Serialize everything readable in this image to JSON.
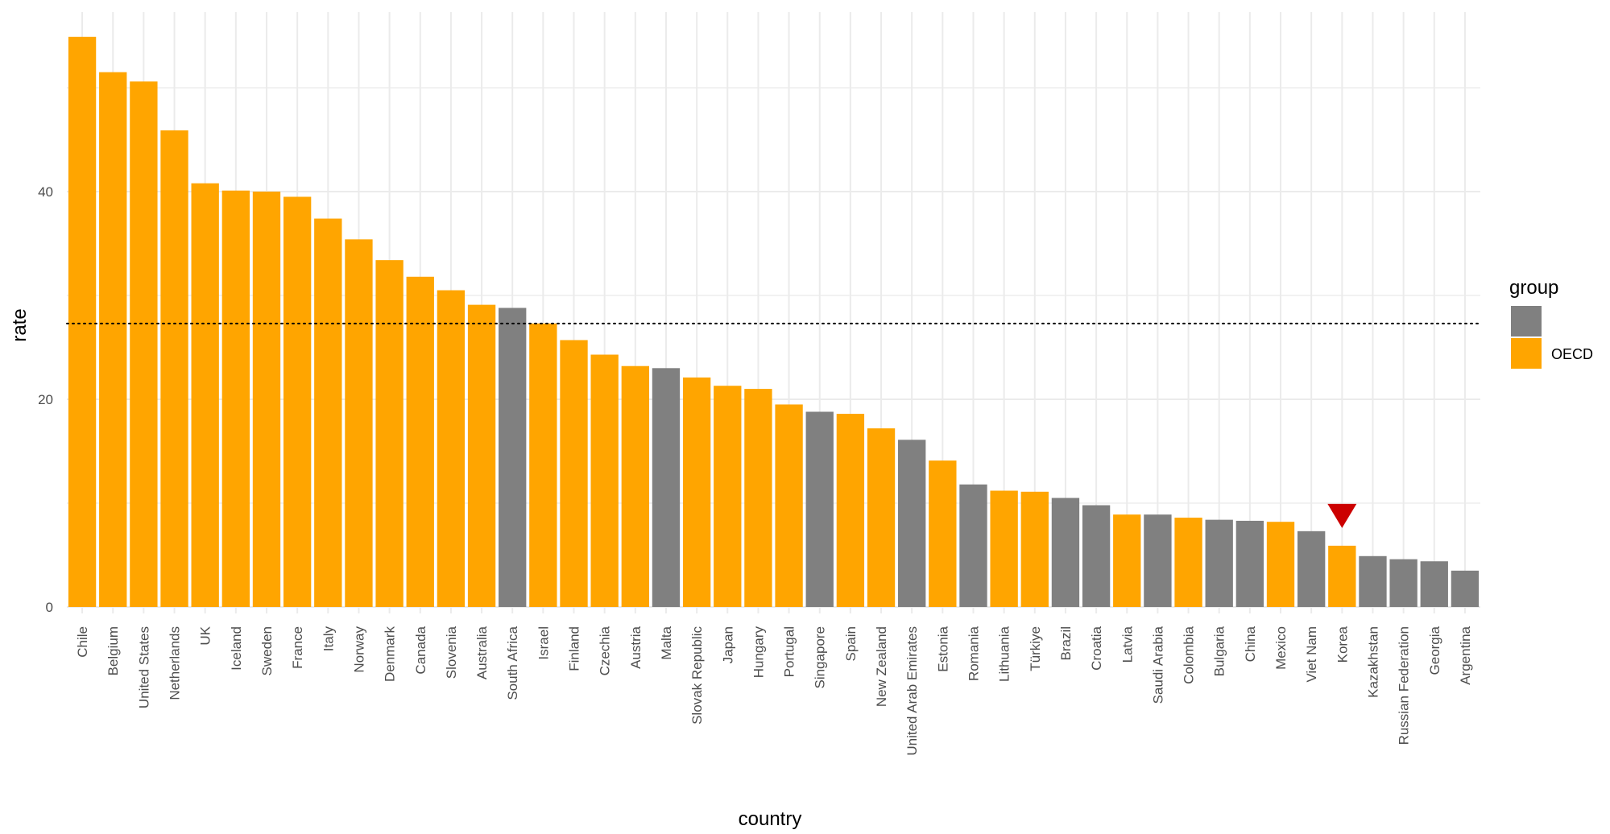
{
  "chart_data": {
    "type": "bar",
    "xlabel": "country",
    "ylabel": "rate",
    "yticks": [
      0,
      20,
      40
    ],
    "ylim": [
      0,
      56.5
    ],
    "reference_line": 27.3,
    "grid": true,
    "legend": {
      "title": "group",
      "placement": "right",
      "entries": [
        {
          "label": "",
          "color": "#808080"
        },
        {
          "label": "OECD",
          "color": "#FFA500"
        }
      ]
    },
    "highlight": {
      "category": "Korea",
      "marker": "down-triangle",
      "color": "#CC0000"
    },
    "colors": {
      "OECD": "#FFA500",
      "other": "#808080"
    },
    "categories": [
      "Chile",
      "Belgium",
      "United States",
      "Netherlands",
      "UK",
      "Iceland",
      "Sweden",
      "France",
      "Italy",
      "Norway",
      "Denmark",
      "Canada",
      "Slovenia",
      "Australia",
      "South Africa",
      "Israel",
      "Finland",
      "Czechia",
      "Austria",
      "Malta",
      "Slovak Republic",
      "Japan",
      "Hungary",
      "Portugal",
      "Singapore",
      "Spain",
      "New Zealand",
      "United Arab Emirates",
      "Estonia",
      "Romania",
      "Lithuania",
      "Türkiye",
      "Brazil",
      "Croatia",
      "Latvia",
      "Saudi Arabia",
      "Colombia",
      "Bulgaria",
      "China",
      "Mexico",
      "Viet Nam",
      "Korea",
      "Kazakhstan",
      "Russian Federation",
      "Georgia",
      "Argentina"
    ],
    "values": [
      54.9,
      51.5,
      50.6,
      45.9,
      40.8,
      40.1,
      40.0,
      39.5,
      37.4,
      35.4,
      33.4,
      31.8,
      30.5,
      29.1,
      28.8,
      27.3,
      25.7,
      24.3,
      23.2,
      23.0,
      22.1,
      21.3,
      21.0,
      19.5,
      18.8,
      18.6,
      17.2,
      16.1,
      14.1,
      11.8,
      11.2,
      11.1,
      10.5,
      9.8,
      8.9,
      8.9,
      8.6,
      8.4,
      8.3,
      8.2,
      7.3,
      5.9,
      4.9,
      4.6,
      4.4,
      3.5
    ],
    "groups": [
      "OECD",
      "OECD",
      "OECD",
      "OECD",
      "OECD",
      "OECD",
      "OECD",
      "OECD",
      "OECD",
      "OECD",
      "OECD",
      "OECD",
      "OECD",
      "OECD",
      "other",
      "OECD",
      "OECD",
      "OECD",
      "OECD",
      "other",
      "OECD",
      "OECD",
      "OECD",
      "OECD",
      "other",
      "OECD",
      "OECD",
      "other",
      "OECD",
      "other",
      "OECD",
      "OECD",
      "other",
      "other",
      "OECD",
      "other",
      "OECD",
      "other",
      "other",
      "OECD",
      "other",
      "OECD",
      "other",
      "other",
      "other",
      "other"
    ]
  }
}
